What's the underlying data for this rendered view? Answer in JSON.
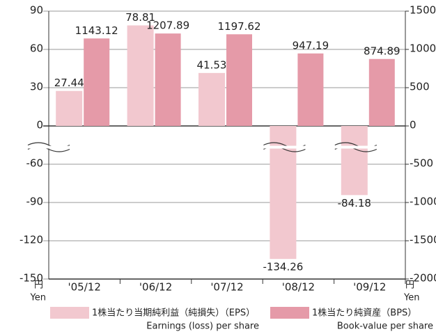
{
  "chart_data": {
    "type": "bar",
    "categories": [
      "'05/12",
      "'06/12",
      "'07/12",
      "'08/12",
      "'09/12"
    ],
    "series": [
      {
        "name": "1株当たり当期純利益（純損失）（EPS）",
        "name_en": "Earnings (loss) per share",
        "color": "#f2c8cf",
        "axis": "y",
        "values": [
          27.44,
          78.81,
          41.53,
          -134.26,
          -84.18
        ]
      },
      {
        "name": "1株当たり純資産（BPS）",
        "name_en": "Book-value per share",
        "color": "#e59aa8",
        "axis": "y2",
        "values": [
          1143.12,
          1207.89,
          1197.62,
          947.19,
          874.89
        ]
      }
    ],
    "ylim": [
      -150,
      90
    ],
    "yticks": [
      -150,
      -120,
      -90,
      -60,
      0,
      30,
      60,
      90
    ],
    "ybreak": [
      -30,
      0
    ],
    "y2lim": [
      -2000,
      1500
    ],
    "y2ticks": [
      -2000,
      -1500,
      -1000,
      -500,
      0,
      500,
      1000,
      1500
    ],
    "y_unit": "円",
    "y_unit_en": "Yen",
    "grid": true
  }
}
